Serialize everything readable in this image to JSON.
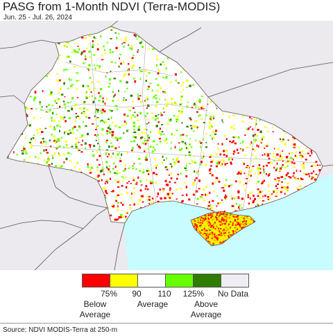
{
  "header": {
    "title": "PASG from 1-Month NDVI (Terra-MODIS)",
    "dates": "Jun. 25 - Jul. 26, 2024"
  },
  "legend": {
    "swatches": [
      {
        "color": "#ff0000"
      },
      {
        "color": "#ffff00"
      },
      {
        "color": "#ffffff"
      },
      {
        "color": "#66ff00"
      },
      {
        "color": "#2e7d00"
      },
      {
        "color": "#f0eef2"
      }
    ],
    "ticks": [
      "75%",
      "90",
      "110",
      "125%",
      "No Data"
    ],
    "captions": {
      "below": "Below Average",
      "average": "Average",
      "above": "Above Average"
    }
  },
  "footer": {
    "source": "Source: NDVI MODIS-Terra at 250-m"
  },
  "colors": {
    "sea": "#c8fcff",
    "outside": "#ece9ef",
    "border": "#555555"
  }
}
